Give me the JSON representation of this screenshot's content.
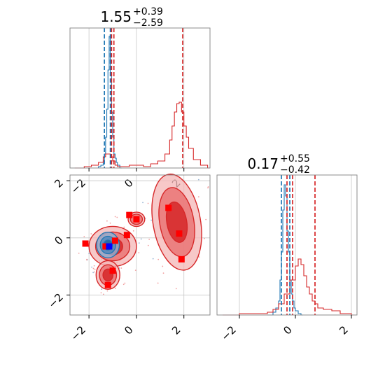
{
  "chart_data": {
    "type": "corner",
    "parameters": [
      "",
      ""
    ],
    "panels": [
      {
        "position": "top-left",
        "type": "histogram",
        "title": {
          "main": "1.55",
          "sup": "+0.39",
          "sub": "−2.59"
        },
        "xlim": [
          -2.8,
          3.1
        ],
        "xticks": [
          -2,
          0,
          2
        ],
        "grid": true,
        "series": [
          {
            "color": "#1f77b4",
            "x": [
              -1.6,
              -1.5,
              -1.4,
              -1.35,
              -1.3,
              -1.25,
              -1.2,
              -1.15,
              -1.1,
              -1.05,
              -1.0,
              -0.95,
              -0.9,
              -0.85,
              -0.8,
              -0.7
            ],
            "counts": [
              0.01,
              0.02,
              0.05,
              0.1,
              0.22,
              0.42,
              0.7,
              0.94,
              0.68,
              0.4,
              0.22,
              0.1,
              0.07,
              0.04,
              0.02,
              0.0
            ]
          },
          {
            "color": "#d62728",
            "x": [
              -2.6,
              -2.2,
              -1.9,
              -1.6,
              -1.4,
              -1.3,
              -1.2,
              -1.1,
              -1.0,
              -0.9,
              -0.8,
              -0.6,
              -0.3,
              0.0,
              0.3,
              0.6,
              0.9,
              1.2,
              1.4,
              1.5,
              1.6,
              1.7,
              1.8,
              1.9,
              2.0,
              2.1,
              2.2,
              2.4,
              2.7,
              3.0
            ],
            "counts": [
              0.0,
              0.01,
              0.02,
              0.04,
              0.08,
              0.1,
              0.1,
              0.08,
              0.05,
              0.02,
              0.01,
              0.01,
              0.02,
              0.02,
              0.01,
              0.03,
              0.05,
              0.1,
              0.2,
              0.3,
              0.4,
              0.46,
              0.47,
              0.4,
              0.3,
              0.22,
              0.14,
              0.06,
              0.02,
              0.0
            ]
          }
        ],
        "vlines": [
          {
            "x": -1.35,
            "color": "#1f77b4"
          },
          {
            "x": -1.1,
            "color": "#1f77b4"
          },
          {
            "x": -1.05,
            "color": "#d62728"
          },
          {
            "x": -0.95,
            "color": "#d62728"
          },
          {
            "x": 1.95,
            "color": "#d62728"
          }
        ]
      },
      {
        "position": "bottom-left",
        "type": "contour",
        "xlim": [
          -2.8,
          3.1
        ],
        "ylim": [
          -2.7,
          2.2
        ],
        "xticks": [
          -2,
          0,
          2
        ],
        "yticks": [
          -2,
          0,
          2
        ],
        "grid": true,
        "red_blobs": [
          {
            "cx": 1.7,
            "cy": 0.55,
            "rx": 1.0,
            "ry": 1.7,
            "rot": -10
          },
          {
            "cx": -1.0,
            "cy": -0.3,
            "rx": 1.0,
            "ry": 0.7,
            "rot": 0
          },
          {
            "cx": -1.2,
            "cy": -1.3,
            "rx": 0.5,
            "ry": 0.5,
            "rot": 0
          },
          {
            "cx": 0.0,
            "cy": 0.65,
            "rx": 0.35,
            "ry": 0.25,
            "rot": 0
          }
        ],
        "blue_blobs": [
          {
            "cx": -1.2,
            "cy": -0.25,
            "rx": 0.48,
            "ry": 0.45,
            "rot": 0
          }
        ],
        "red_markers": [
          [
            -2.15,
            -0.2
          ],
          [
            -1.3,
            -0.3
          ],
          [
            -1.0,
            -1.15
          ],
          [
            -1.2,
            -1.65
          ],
          [
            -0.3,
            0.8
          ],
          [
            -0.4,
            0.1
          ],
          [
            0.0,
            0.65
          ],
          [
            1.35,
            1.05
          ],
          [
            1.8,
            0.15
          ],
          [
            1.9,
            -0.75
          ],
          [
            -0.9,
            -0.1
          ]
        ],
        "blue_markers": [
          [
            -1.15,
            -0.3
          ]
        ]
      },
      {
        "position": "bottom-right",
        "type": "histogram",
        "title": {
          "main": "0.17",
          "sup": "+0.55",
          "sub": "−0.42"
        },
        "xlim": [
          -2.8,
          2.2
        ],
        "xticks": [
          -2,
          0,
          2
        ],
        "grid": true,
        "series": [
          {
            "color": "#1f77b4",
            "x": [
              -1.0,
              -0.8,
              -0.7,
              -0.6,
              -0.55,
              -0.5,
              -0.45,
              -0.4,
              -0.35,
              -0.3,
              -0.25,
              -0.2,
              -0.15,
              -0.1,
              -0.05,
              0.0,
              0.1,
              0.2
            ],
            "counts": [
              0.0,
              0.02,
              0.05,
              0.1,
              0.25,
              0.45,
              0.75,
              0.93,
              0.85,
              0.6,
              0.45,
              0.25,
              0.15,
              0.1,
              0.05,
              0.03,
              0.01,
              0.0
            ]
          },
          {
            "color": "#d62728",
            "x": [
              -2.6,
              -2.0,
              -1.5,
              -1.0,
              -0.8,
              -0.6,
              -0.4,
              -0.2,
              0.0,
              0.1,
              0.2,
              0.3,
              0.4,
              0.5,
              0.6,
              0.7,
              0.8,
              1.0,
              1.3,
              1.6,
              2.0
            ],
            "counts": [
              0.0,
              0.01,
              0.01,
              0.02,
              0.04,
              0.08,
              0.15,
              0.25,
              0.35,
              0.4,
              0.36,
              0.28,
              0.2,
              0.15,
              0.1,
              0.08,
              0.05,
              0.04,
              0.03,
              0.01,
              0.0
            ]
          }
        ],
        "vlines": [
          {
            "x": -0.5,
            "color": "#1f77b4"
          },
          {
            "x": -0.3,
            "color": "#d62728"
          },
          {
            "x": -0.2,
            "color": "#1f77b4"
          },
          {
            "x": -0.1,
            "color": "#d62728"
          },
          {
            "x": 0.7,
            "color": "#d62728"
          }
        ]
      }
    ]
  }
}
